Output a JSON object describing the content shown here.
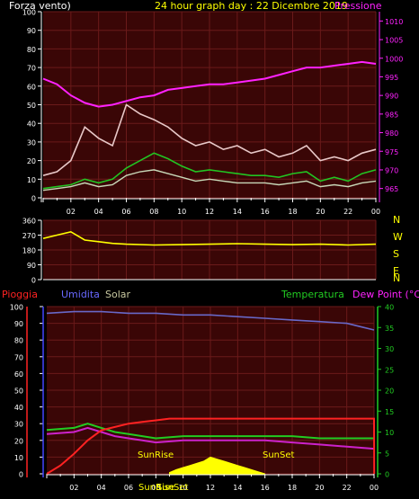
{
  "header": {
    "left": "Forza vento)",
    "center": "24 hour graph day : 22 Dicembre 2019",
    "right": "Pressione"
  },
  "direction_letters": [
    "N",
    "W",
    "S",
    "E",
    "N"
  ],
  "lower_header": {
    "rain": "Pioggia",
    "humidity": "Umidita",
    "solar": "Solar",
    "temperature": "Temperatura",
    "dewpoint": "Dew Point (°C)"
  },
  "sun_labels": {
    "sunrise": "SunRise",
    "sunset": "SunSet"
  },
  "colors": {
    "background": "#000000",
    "panel": "#3a0606",
    "grid": "#6a1a1a",
    "wind_gust": "#e8c8c8",
    "wind_avg": "#c8d8b8",
    "wind_green": "#22c422",
    "pressure": "#ff22ff",
    "direction": "#ffff00",
    "humidity": "#6868c8",
    "rain": "#ff2222",
    "temperature": "#22cc22",
    "dewpoint": "#cc22cc",
    "solar": "#ffff00",
    "pressure_axis": "#ff22ff",
    "right_axis_green": "#22cc22",
    "left_axis_blue": "#4444ff"
  },
  "chart_data": [
    {
      "type": "line",
      "name_id": "wind-pressure",
      "x_ticks": [
        "02",
        "04",
        "06",
        "08",
        "10",
        "12",
        "14",
        "16",
        "18",
        "20",
        "22",
        "00"
      ],
      "y_left_ticks": [
        "0",
        "10",
        "20",
        "30",
        "40",
        "50",
        "60",
        "70",
        "80",
        "90",
        "100"
      ],
      "ylim_left": [
        0,
        100
      ],
      "y_right_ticks": [
        "965",
        "970",
        "975",
        "980",
        "985",
        "990",
        "995",
        "1000",
        "1005",
        "1010"
      ],
      "ylim_right": [
        962.5,
        1012.5
      ],
      "x_range": [
        0,
        24
      ],
      "series": [
        {
          "id": "pressure",
          "axis": "right",
          "x": [
            0,
            1,
            2,
            3,
            3.5,
            4,
            5,
            6,
            7,
            8,
            9,
            10,
            11,
            12,
            13,
            14,
            15,
            16,
            17,
            18,
            19,
            20,
            21,
            22,
            23,
            24
          ],
          "values": [
            994.5,
            993,
            990,
            988,
            987.5,
            987,
            987.5,
            988.5,
            989.5,
            990,
            991.5,
            992,
            992.5,
            993,
            993,
            993.5,
            994,
            994.5,
            995.5,
            996.5,
            997.5,
            997.5,
            998,
            998.5,
            999,
            998.5
          ]
        },
        {
          "id": "wind_gust",
          "axis": "left",
          "x": [
            0,
            1,
            2,
            3,
            4,
            5,
            6,
            7,
            8,
            9,
            10,
            11,
            12,
            13,
            14,
            15,
            16,
            17,
            18,
            19,
            20,
            21,
            22,
            23,
            24
          ],
          "values": [
            12,
            14,
            20,
            38,
            32,
            28,
            50,
            45,
            42,
            38,
            32,
            28,
            30,
            26,
            28,
            24,
            26,
            22,
            24,
            28,
            20,
            22,
            20,
            24,
            26
          ]
        },
        {
          "id": "wind_avg",
          "axis": "left",
          "x": [
            0,
            1,
            2,
            3,
            4,
            5,
            6,
            7,
            8,
            9,
            10,
            11,
            12,
            13,
            14,
            15,
            16,
            17,
            18,
            19,
            20,
            21,
            22,
            23,
            24
          ],
          "values": [
            4,
            5,
            6,
            8,
            6,
            7,
            12,
            14,
            15,
            13,
            11,
            9,
            10,
            9,
            8,
            8,
            8,
            7,
            8,
            9,
            6,
            7,
            6,
            8,
            9
          ]
        },
        {
          "id": "wind_green",
          "axis": "left",
          "x": [
            0,
            1,
            2,
            3,
            4,
            5,
            6,
            7,
            8,
            9,
            10,
            11,
            12,
            13,
            14,
            15,
            16,
            17,
            18,
            19,
            20,
            21,
            22,
            23,
            24
          ],
          "values": [
            5,
            6,
            7,
            10,
            8,
            10,
            16,
            20,
            24,
            21,
            17,
            14,
            15,
            14,
            13,
            12,
            12,
            11,
            13,
            14,
            9,
            11,
            9,
            13,
            15
          ]
        }
      ]
    },
    {
      "type": "line",
      "name_id": "wind-direction",
      "y_ticks": [
        "0",
        "90",
        "180",
        "270",
        "360"
      ],
      "ylim": [
        0,
        360
      ],
      "x_range": [
        0,
        24
      ],
      "series": [
        {
          "id": "direction",
          "x": [
            0,
            1,
            2,
            3,
            4,
            5,
            6,
            8,
            10,
            12,
            14,
            16,
            18,
            20,
            22,
            24
          ],
          "values": [
            250,
            270,
            290,
            240,
            230,
            220,
            215,
            210,
            212,
            215,
            218,
            215,
            212,
            215,
            210,
            215
          ]
        }
      ]
    },
    {
      "type": "line",
      "name_id": "rain-humidity-temperature",
      "x_ticks": [
        "02",
        "04",
        "06",
        "08",
        "10",
        "12",
        "14",
        "16",
        "18",
        "20",
        "22",
        "00"
      ],
      "y_left_ticks": [
        "0",
        "10",
        "20",
        "30",
        "40",
        "50",
        "60",
        "70",
        "80",
        "90",
        "100"
      ],
      "ylim_left": [
        0,
        100
      ],
      "y_right_ticks": [
        "0",
        "5",
        "10",
        "15",
        "20",
        "25",
        "30",
        "35",
        "40"
      ],
      "ylim_right": [
        0,
        40
      ],
      "x_range": [
        0,
        24
      ],
      "series": [
        {
          "id": "humidity",
          "axis": "left",
          "x": [
            0,
            2,
            4,
            6,
            8,
            10,
            12,
            14,
            16,
            18,
            20,
            22,
            23,
            24
          ],
          "values": [
            96,
            97,
            97,
            96,
            96,
            95,
            95,
            94,
            93,
            92,
            91,
            90,
            88,
            86
          ]
        },
        {
          "id": "rain",
          "axis": "left",
          "x": [
            0,
            1,
            2,
            3,
            4,
            5,
            6,
            7,
            8,
            9,
            24,
            24.01
          ],
          "values": [
            0,
            5,
            12,
            20,
            26,
            28,
            30,
            31,
            32,
            33,
            33,
            0
          ]
        },
        {
          "id": "temperature",
          "axis": "right",
          "x": [
            0,
            2,
            3,
            4,
            5,
            6,
            7,
            8,
            10,
            12,
            14,
            16,
            18,
            20,
            22,
            24
          ],
          "values": [
            10.5,
            11,
            12,
            11,
            10,
            9.5,
            9,
            8.5,
            9,
            9,
            9,
            9,
            9,
            8.5,
            8.5,
            8.5
          ]
        },
        {
          "id": "dewpoint",
          "axis": "right",
          "x": [
            0,
            2,
            3,
            4,
            5,
            6,
            7,
            8,
            10,
            12,
            14,
            16,
            18,
            20,
            22,
            24
          ],
          "values": [
            9.5,
            10,
            11,
            10,
            9,
            8.5,
            8,
            7.5,
            8,
            8,
            8,
            8,
            7.5,
            7,
            6.5,
            6
          ]
        },
        {
          "id": "solar",
          "axis": "right",
          "x": [
            9,
            9.5,
            10,
            10.5,
            11,
            11.5,
            12,
            12.5,
            13,
            13.5,
            14,
            14.5,
            15,
            15.5,
            16
          ],
          "values": [
            0.3,
            1,
            1.5,
            2,
            2.5,
            3,
            4,
            3.5,
            3,
            2.5,
            2,
            1.5,
            1,
            0.5,
            0
          ]
        }
      ]
    }
  ]
}
